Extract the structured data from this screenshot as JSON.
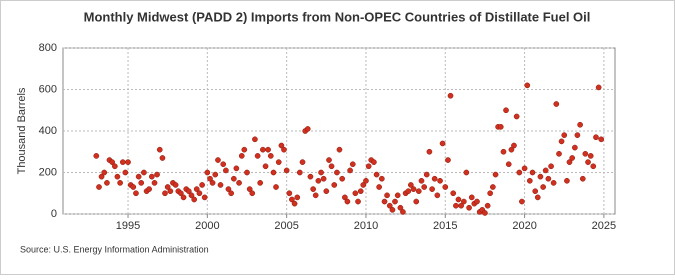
{
  "chart_data": {
    "type": "scatter",
    "title": "Monthly Midwest (PADD 2) Imports from Non-OPEC Countries of Distillate Fuel Oil",
    "y_label": "Thousand Barrels",
    "source": "Source: U.S. Energy Information Administration",
    "xlim": [
      1990.9,
      2025.7
    ],
    "xticks": [
      1995,
      2000,
      2005,
      2010,
      2015,
      2020,
      2025
    ],
    "ylim": [
      0,
      800
    ],
    "yticks": [
      0,
      200,
      400,
      600,
      800
    ],
    "grid": true,
    "series": [
      {
        "name": "Imports",
        "color": "#d0301f",
        "x": [
          1993,
          1993.17,
          1993.33,
          1993.5,
          1993.67,
          1993.83,
          1994,
          1994.17,
          1994.33,
          1994.5,
          1994.67,
          1994.83,
          1995,
          1995.17,
          1995.33,
          1995.5,
          1995.67,
          1995.83,
          1996,
          1996.17,
          1996.33,
          1996.5,
          1996.67,
          1996.83,
          1997,
          1997.17,
          1997.33,
          1997.5,
          1997.67,
          1997.83,
          1998,
          1998.17,
          1998.33,
          1998.5,
          1998.67,
          1998.83,
          1999,
          1999.17,
          1999.33,
          1999.5,
          1999.67,
          1999.83,
          2000,
          2000.17,
          2000.33,
          2000.5,
          2000.67,
          2000.83,
          2001,
          2001.17,
          2001.33,
          2001.5,
          2001.67,
          2001.83,
          2002,
          2002.17,
          2002.33,
          2002.5,
          2002.67,
          2002.83,
          2003,
          2003.17,
          2003.33,
          2003.5,
          2003.67,
          2003.83,
          2004,
          2004.17,
          2004.33,
          2004.5,
          2004.67,
          2004.83,
          2005,
          2005.17,
          2005.33,
          2005.5,
          2005.67,
          2005.83,
          2006,
          2006.17,
          2006.33,
          2006.5,
          2006.67,
          2006.83,
          2007,
          2007.17,
          2007.33,
          2007.5,
          2007.67,
          2007.83,
          2008,
          2008.17,
          2008.33,
          2008.5,
          2008.67,
          2008.83,
          2009,
          2009.17,
          2009.33,
          2009.5,
          2009.67,
          2009.83,
          2010,
          2010.17,
          2010.33,
          2010.5,
          2010.67,
          2010.83,
          2011,
          2011.17,
          2011.33,
          2011.5,
          2011.67,
          2011.83,
          2012,
          2012.17,
          2012.33,
          2012.5,
          2012.67,
          2012.83,
          2013,
          2013.17,
          2013.33,
          2013.5,
          2013.67,
          2013.83,
          2014,
          2014.17,
          2014.33,
          2014.5,
          2014.67,
          2014.83,
          2015,
          2015.17,
          2015.33,
          2015.5,
          2015.67,
          2015.83,
          2016,
          2016.17,
          2016.33,
          2016.5,
          2016.67,
          2016.83,
          2017,
          2017.17,
          2017.33,
          2017.5,
          2017.67,
          2017.83,
          2018,
          2018.17,
          2018.33,
          2018.5,
          2018.67,
          2018.83,
          2019,
          2019.17,
          2019.33,
          2019.5,
          2019.67,
          2019.83,
          2020,
          2020.17,
          2020.33,
          2020.5,
          2020.67,
          2020.83,
          2021,
          2021.17,
          2021.33,
          2021.5,
          2021.67,
          2021.83,
          2022,
          2022.17,
          2022.33,
          2022.5,
          2022.67,
          2022.83,
          2023,
          2023.17,
          2023.33,
          2023.5,
          2023.67,
          2023.83,
          2024,
          2024.17,
          2024.33,
          2024.5,
          2024.67,
          2024.83
        ],
        "values": [
          280,
          130,
          180,
          200,
          150,
          260,
          250,
          230,
          180,
          150,
          250,
          200,
          250,
          140,
          130,
          100,
          180,
          150,
          200,
          110,
          120,
          180,
          150,
          190,
          310,
          270,
          100,
          130,
          110,
          150,
          140,
          110,
          100,
          80,
          120,
          110,
          90,
          70,
          120,
          100,
          140,
          80,
          200,
          170,
          150,
          190,
          260,
          140,
          240,
          210,
          120,
          100,
          170,
          220,
          150,
          280,
          310,
          200,
          120,
          100,
          360,
          280,
          150,
          310,
          230,
          310,
          280,
          200,
          130,
          250,
          330,
          310,
          210,
          100,
          70,
          50,
          80,
          200,
          250,
          400,
          410,
          180,
          120,
          90,
          160,
          200,
          170,
          110,
          260,
          230,
          140,
          200,
          310,
          170,
          80,
          60,
          210,
          240,
          100,
          60,
          110,
          140,
          160,
          230,
          260,
          250,
          190,
          130,
          170,
          60,
          90,
          40,
          20,
          60,
          90,
          30,
          10,
          100,
          110,
          140,
          120,
          60,
          110,
          160,
          130,
          190,
          300,
          120,
          170,
          90,
          160,
          340,
          130,
          260,
          570,
          100,
          40,
          70,
          40,
          60,
          200,
          30,
          80,
          50,
          60,
          10,
          20,
          5,
          40,
          100,
          130,
          190,
          420,
          420,
          300,
          500,
          240,
          310,
          330,
          470,
          200,
          60,
          220,
          620,
          160,
          200,
          110,
          80,
          180,
          130,
          210,
          170,
          230,
          150,
          530,
          290,
          350,
          380,
          160,
          250,
          270,
          320,
          380,
          430,
          170,
          290,
          250,
          280,
          230,
          370,
          610,
          360
        ]
      }
    ]
  }
}
